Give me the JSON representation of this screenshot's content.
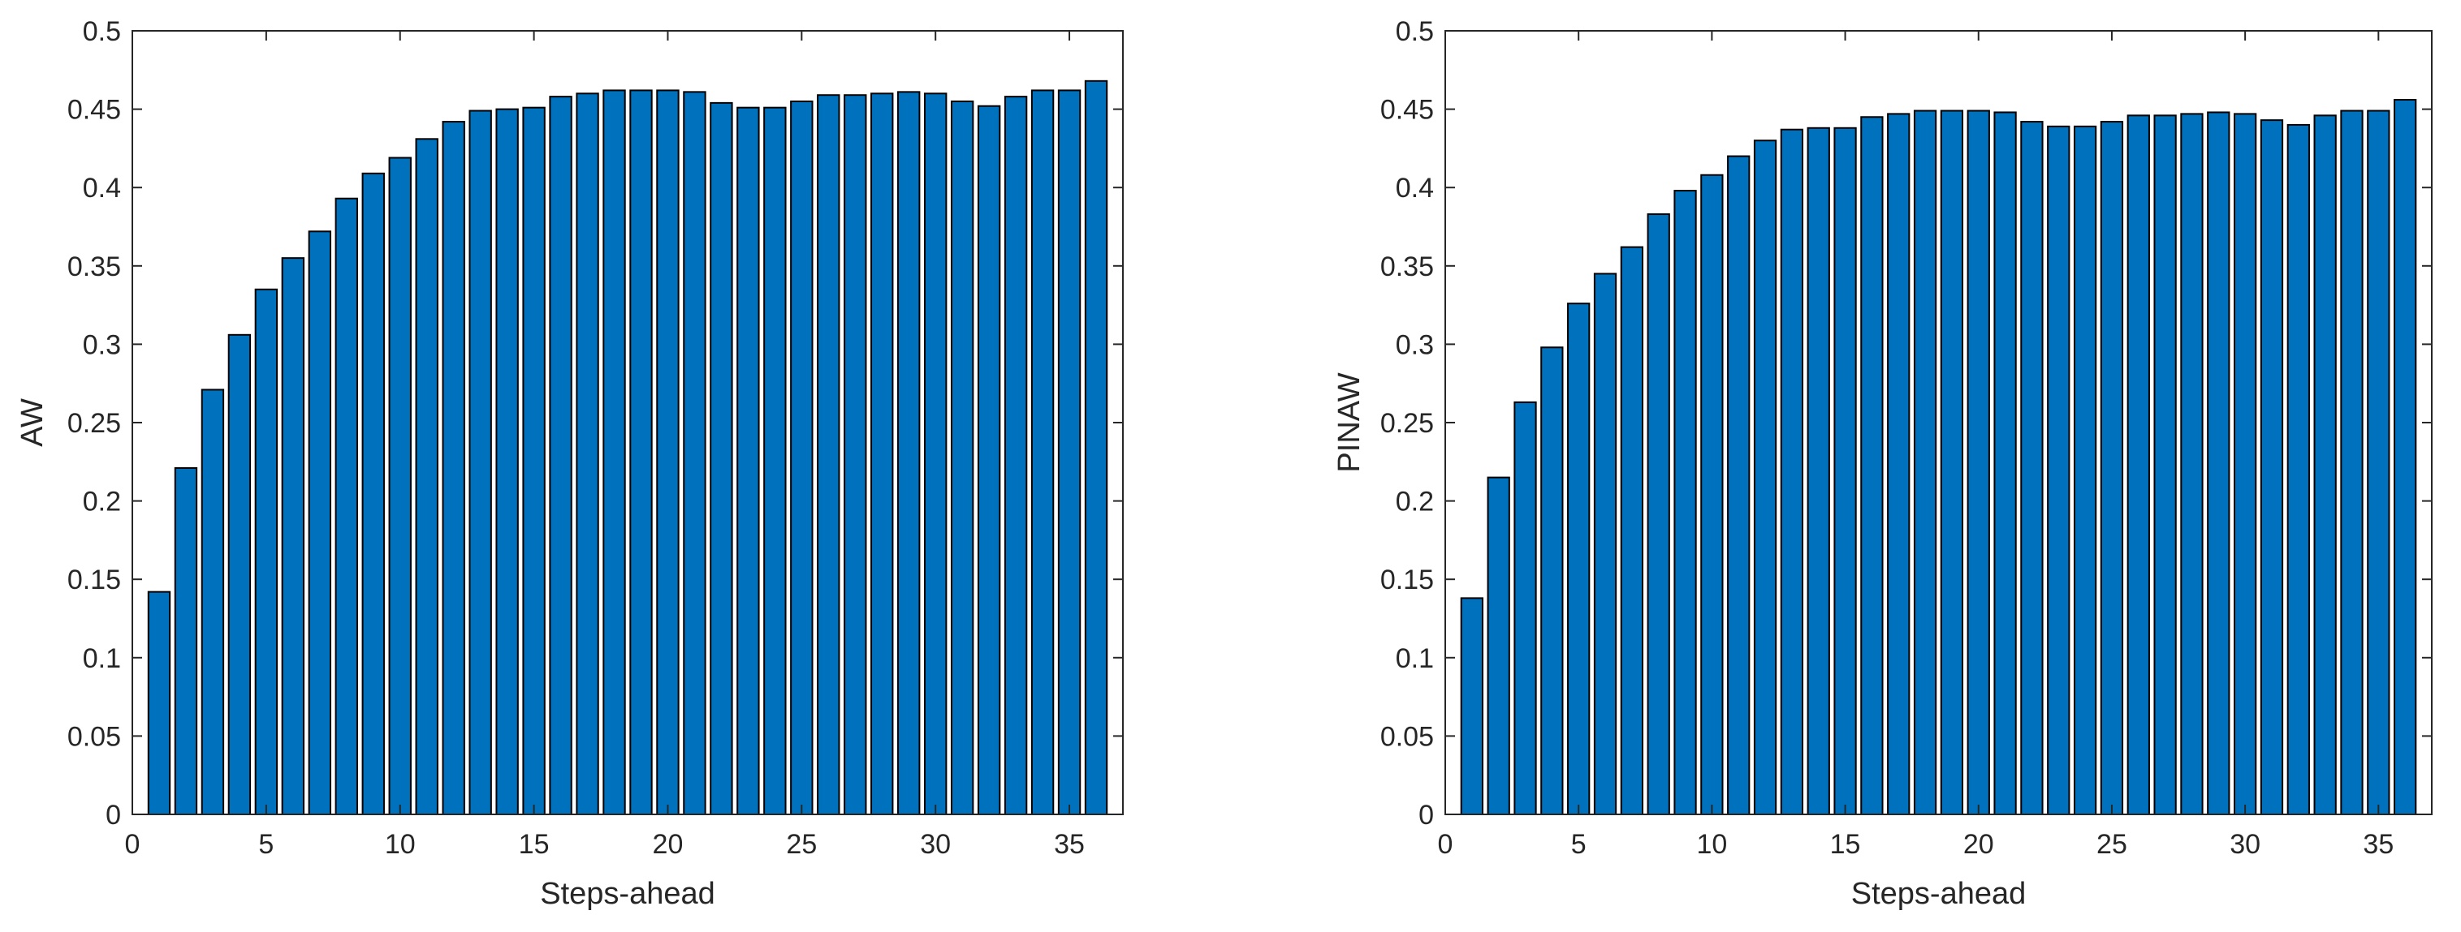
{
  "colors": {
    "bar_fill": "#0072BD",
    "bar_edge": "#000000",
    "axis": "#262626",
    "background": "#ffffff"
  },
  "chart_data": [
    {
      "type": "bar",
      "title": "",
      "xlabel": "Steps-ahead",
      "ylabel": "AW",
      "xlim": [
        0,
        37
      ],
      "ylim": [
        0,
        0.5
      ],
      "xticks": [
        0,
        5,
        10,
        15,
        20,
        25,
        30,
        35
      ],
      "yticks": [
        0,
        0.05,
        0.1,
        0.15,
        0.2,
        0.25,
        0.3,
        0.35,
        0.4,
        0.45,
        0.5
      ],
      "xtick_labels": [
        "0",
        "5",
        "10",
        "15",
        "20",
        "25",
        "30",
        "35"
      ],
      "ytick_labels": [
        "0",
        "0.05",
        "0.1",
        "0.15",
        "0.2",
        "0.25",
        "0.3",
        "0.35",
        "0.4",
        "0.45",
        "0.5"
      ],
      "grid": false,
      "x": [
        1,
        2,
        3,
        4,
        5,
        6,
        7,
        8,
        9,
        10,
        11,
        12,
        13,
        14,
        15,
        16,
        17,
        18,
        19,
        20,
        21,
        22,
        23,
        24,
        25,
        26,
        27,
        28,
        29,
        30,
        31,
        32,
        33,
        34,
        35,
        36
      ],
      "values": [
        0.142,
        0.221,
        0.271,
        0.306,
        0.335,
        0.355,
        0.372,
        0.393,
        0.409,
        0.419,
        0.431,
        0.442,
        0.449,
        0.45,
        0.451,
        0.458,
        0.46,
        0.462,
        0.462,
        0.462,
        0.461,
        0.454,
        0.451,
        0.451,
        0.455,
        0.459,
        0.459,
        0.46,
        0.461,
        0.46,
        0.455,
        0.452,
        0.458,
        0.462,
        0.462,
        0.468
      ]
    },
    {
      "type": "bar",
      "title": "",
      "xlabel": "Steps-ahead",
      "ylabel": "PINAW",
      "xlim": [
        0,
        37
      ],
      "ylim": [
        0,
        0.5
      ],
      "xticks": [
        0,
        5,
        10,
        15,
        20,
        25,
        30,
        35
      ],
      "yticks": [
        0,
        0.05,
        0.1,
        0.15,
        0.2,
        0.25,
        0.3,
        0.35,
        0.4,
        0.45,
        0.5
      ],
      "xtick_labels": [
        "0",
        "5",
        "10",
        "15",
        "20",
        "25",
        "30",
        "35"
      ],
      "ytick_labels": [
        "0",
        "0.05",
        "0.1",
        "0.15",
        "0.2",
        "0.25",
        "0.3",
        "0.35",
        "0.4",
        "0.45",
        "0.5"
      ],
      "grid": false,
      "x": [
        1,
        2,
        3,
        4,
        5,
        6,
        7,
        8,
        9,
        10,
        11,
        12,
        13,
        14,
        15,
        16,
        17,
        18,
        19,
        20,
        21,
        22,
        23,
        24,
        25,
        26,
        27,
        28,
        29,
        30,
        31,
        32,
        33,
        34,
        35,
        36
      ],
      "values": [
        0.138,
        0.215,
        0.263,
        0.298,
        0.326,
        0.345,
        0.362,
        0.383,
        0.398,
        0.408,
        0.42,
        0.43,
        0.437,
        0.438,
        0.438,
        0.445,
        0.447,
        0.449,
        0.449,
        0.449,
        0.448,
        0.442,
        0.439,
        0.439,
        0.442,
        0.446,
        0.446,
        0.447,
        0.448,
        0.447,
        0.443,
        0.44,
        0.446,
        0.449,
        0.449,
        0.456
      ]
    }
  ]
}
